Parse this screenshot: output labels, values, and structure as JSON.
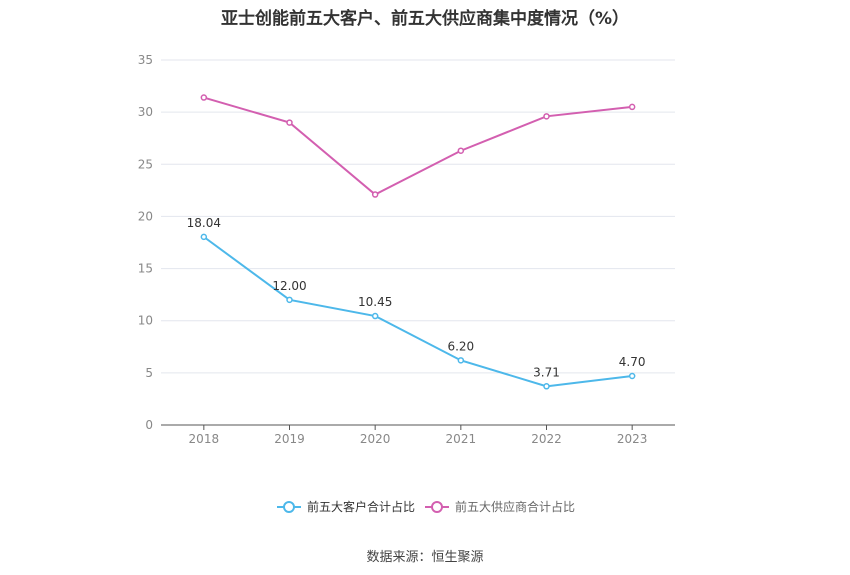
{
  "chart_data": {
    "type": "line",
    "title": "亚士创能前五大客户、前五大供应商集中度情况（%）",
    "categories": [
      "2018",
      "2019",
      "2020",
      "2021",
      "2022",
      "2023"
    ],
    "ylim": [
      0,
      35
    ],
    "yticks": [
      "0",
      "5",
      "10",
      "15",
      "20",
      "25",
      "30",
      "35"
    ],
    "grid": true,
    "legend_position": "bottom",
    "series": [
      {
        "name": "前五大客户合计占比",
        "values": [
          18.04,
          12.0,
          10.45,
          6.2,
          3.71,
          4.7
        ],
        "labels": [
          "18.04",
          "12.00",
          "10.45",
          "6.20",
          "3.71",
          "4.70"
        ],
        "color": "#4db8ea"
      },
      {
        "name": "前五大供应商合计占比",
        "values": [
          31.4,
          29.0,
          22.1,
          26.3,
          29.6,
          30.5
        ],
        "color": "#d35fb0"
      }
    ]
  },
  "source": "数据来源：恒生聚源"
}
